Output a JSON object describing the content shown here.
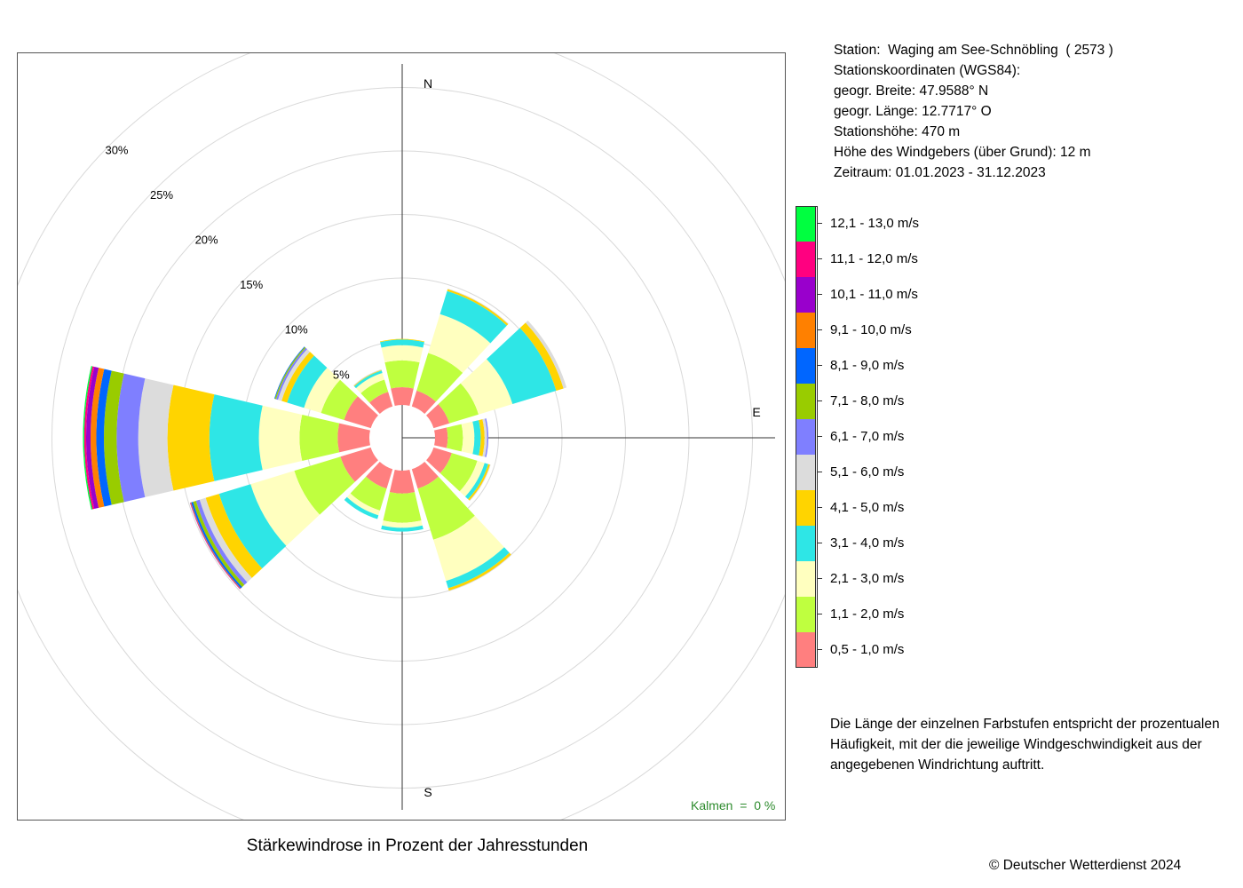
{
  "station": {
    "line1": "Station:  Waging am See-Schnöbling  ( 2573 )",
    "line2": "Stationskoordinaten (WGS84):",
    "line3": "geogr. Breite: 47.9588° N",
    "line4": "geogr. Länge: 12.7717° O",
    "line5": "Stationshöhe: 470 m",
    "line6": "Höhe des Windgebers (über Grund): 12 m",
    "line7": "Zeitraum: 01.01.2023 - 31.12.2023"
  },
  "note": "Die Länge der einzelnen Farbstufen entspricht der prozentualen Häufigkeit, mit der die jeweilige Windgeschwindigkeit aus der angegebenen Windrichtung auftritt.",
  "caption": "Stärkewindrose in Prozent der Jahresstunden",
  "copyright": "© Deutscher Wetterdienst  2024",
  "calm_text": "Kalmen  =  0 %",
  "chart_data": {
    "type": "wind_rose",
    "title": "Stärkewindrose in Prozent der Jahresstunden",
    "unit": "%",
    "calm_percent": 0,
    "compass_labels": [
      "N",
      "E",
      "S"
    ],
    "ring_values": [
      5,
      10,
      15,
      20,
      25,
      30
    ],
    "ring_labels": [
      "5%",
      "10%",
      "15%",
      "20%",
      "25%",
      "30%"
    ],
    "speed_classes": [
      {
        "label": "0,5 - 1,0 m/s",
        "color": "#ff7f7f"
      },
      {
        "label": "1,1 - 2,0 m/s",
        "color": "#bfff3f"
      },
      {
        "label": "2,1 - 3,0 m/s",
        "color": "#ffffbf"
      },
      {
        "label": "3,1 - 4,0 m/s",
        "color": "#2ee6e6"
      },
      {
        "label": "4,1 - 5,0 m/s",
        "color": "#ffd400"
      },
      {
        "label": "5,1 - 6,0 m/s",
        "color": "#dcdcdc"
      },
      {
        "label": "6,1 - 7,0 m/s",
        "color": "#7f7fff"
      },
      {
        "label": "7,1 - 8,0 m/s",
        "color": "#99cc00"
      },
      {
        "label": "8,1 - 9,0 m/s",
        "color": "#0066ff"
      },
      {
        "label": "9,1 - 10,0 m/s",
        "color": "#ff8000"
      },
      {
        "label": "10,1 - 11,0 m/s",
        "color": "#9900cc"
      },
      {
        "label": "11,1 - 12,0 m/s",
        "color": "#ff0080"
      },
      {
        "label": "12,1 - 13,0 m/s",
        "color": "#00ff40"
      }
    ],
    "directions_deg": [
      0,
      30,
      60,
      90,
      120,
      150,
      180,
      210,
      240,
      270,
      300,
      330
    ],
    "series": [
      {
        "direction_deg": 0,
        "values": [
          1.4,
          2.1,
          1.2,
          0.45,
          0.05,
          0,
          0,
          0,
          0,
          0,
          0,
          0,
          0
        ]
      },
      {
        "direction_deg": 30,
        "values": [
          1.3,
          3.1,
          3.2,
          1.9,
          0.15,
          0.05,
          0,
          0,
          0,
          0,
          0,
          0,
          0
        ]
      },
      {
        "direction_deg": 60,
        "values": [
          1.3,
          2.4,
          2.8,
          3.6,
          0.6,
          0.25,
          0,
          0,
          0,
          0,
          0,
          0,
          0
        ]
      },
      {
        "direction_deg": 90,
        "values": [
          1.0,
          1.2,
          0.9,
          0.5,
          0.3,
          0.2,
          0.1,
          0,
          0,
          0,
          0,
          0,
          0
        ]
      },
      {
        "direction_deg": 120,
        "values": [
          1.5,
          2.1,
          0.6,
          0.3,
          0.15,
          0.05,
          0,
          0,
          0,
          0,
          0,
          0,
          0
        ]
      },
      {
        "direction_deg": 150,
        "values": [
          1.6,
          4.2,
          3.4,
          0.6,
          0.2,
          0.05,
          0,
          0,
          0,
          0,
          0,
          0,
          0
        ]
      },
      {
        "direction_deg": 180,
        "values": [
          1.8,
          2.3,
          0.4,
          0.3,
          0,
          0,
          0,
          0,
          0,
          0,
          0,
          0,
          0
        ]
      },
      {
        "direction_deg": 210,
        "values": [
          1.6,
          1.8,
          0.4,
          0.3,
          0,
          0,
          0,
          0,
          0,
          0,
          0,
          0,
          0
        ]
      },
      {
        "direction_deg": 240,
        "values": [
          2.5,
          3.8,
          3.6,
          2.6,
          1.1,
          0.5,
          0.3,
          0.25,
          0.15,
          0.05,
          0.03,
          0.02,
          0
        ]
      },
      {
        "direction_deg": 270,
        "values": [
          2.5,
          3.0,
          3.2,
          3.9,
          3.3,
          2.3,
          1.7,
          1.0,
          0.6,
          0.45,
          0.35,
          0.15,
          0.1
        ]
      },
      {
        "direction_deg": 300,
        "values": [
          2.2,
          1.9,
          1.4,
          1.4,
          0.45,
          0.3,
          0.15,
          0.1,
          0.05,
          0,
          0,
          0,
          0
        ]
      },
      {
        "direction_deg": 330,
        "values": [
          1.2,
          1.0,
          0.55,
          0.2,
          0.05,
          0.05,
          0,
          0,
          0,
          0,
          0,
          0,
          0
        ]
      }
    ]
  }
}
